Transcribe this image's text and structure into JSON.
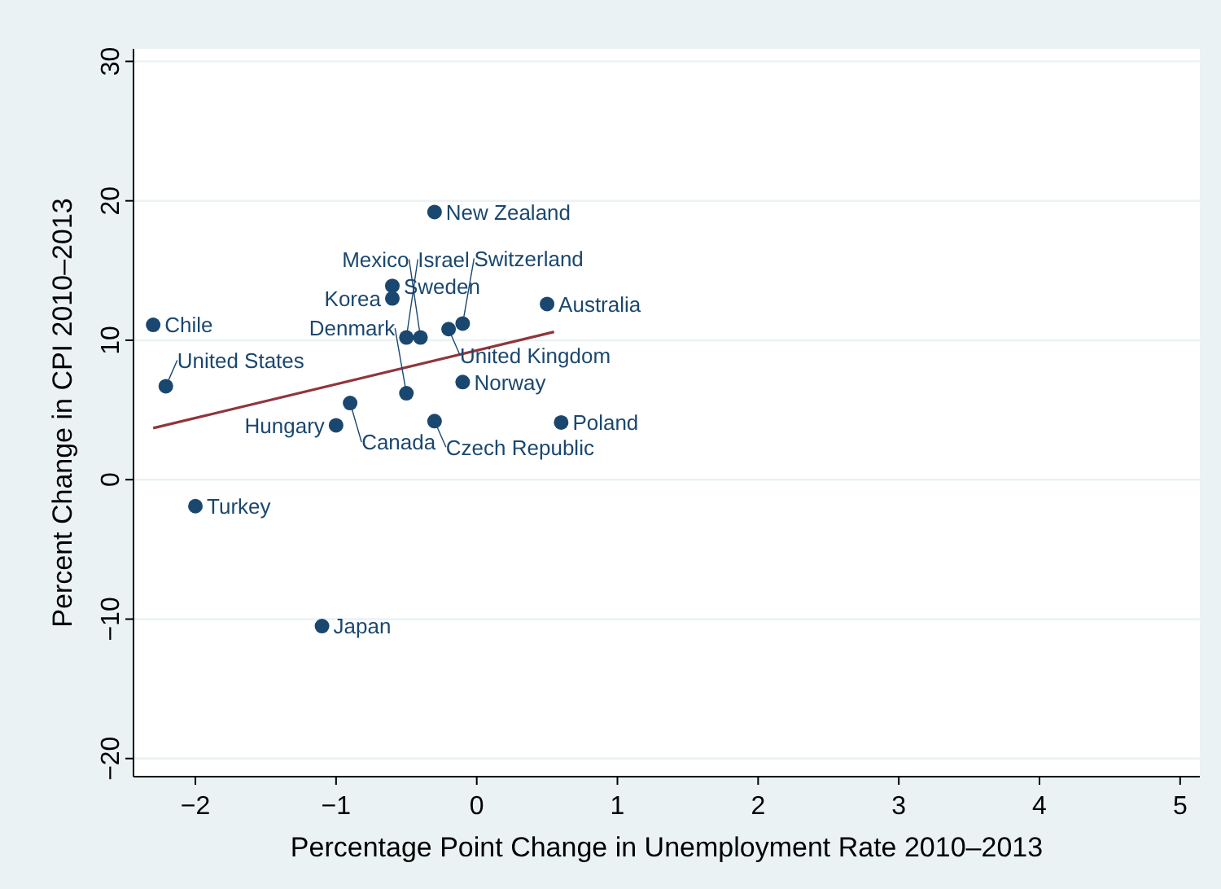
{
  "chart_data": {
    "type": "scatter",
    "xlabel": "Percentage Point Change in Unemployment Rate 2010–2013",
    "ylabel": "Percent Change in CPI 2010–2013",
    "xlim": [
      -2.44,
      5.14
    ],
    "ylim": [
      -21.3,
      30.9
    ],
    "xticks": [
      {
        "value": -2,
        "label": "−2"
      },
      {
        "value": -1,
        "label": "−1"
      },
      0,
      1,
      2,
      3,
      4,
      5
    ],
    "yticks": [
      {
        "value": -20,
        "label": "−20"
      },
      {
        "value": -10,
        "label": "−10"
      },
      0,
      10,
      20,
      30
    ],
    "grid": "y",
    "marker": "circle",
    "series": [
      {
        "color": "#1a476f",
        "x": [
          -2.3,
          -2.21,
          -2.0,
          -1.1,
          -1.0,
          -0.9,
          -0.5,
          -0.3,
          -0.1,
          0.6,
          -0.3,
          -0.6,
          -0.6,
          0.5,
          -0.5,
          -0.4,
          -0.2,
          -0.1
        ],
        "values": [
          11.1,
          6.7,
          -1.9,
          -10.5,
          3.9,
          5.5,
          6.2,
          4.2,
          7.0,
          4.1,
          19.2,
          13.9,
          13.0,
          12.6,
          10.2,
          10.2,
          10.8,
          11.2
        ]
      },
      {
        "type": "line",
        "color": "#90353b",
        "x": [
          -2.3,
          0.55
        ],
        "values": [
          3.7,
          10.6
        ],
        "marker": "none",
        "line_style": "solid"
      }
    ],
    "annotations": [
      {
        "text": "Chile",
        "x": -2.3,
        "y": 11.1
      },
      {
        "text": "United States",
        "x": -2.21,
        "y": 6.7
      },
      {
        "text": "Turkey",
        "x": -2.0,
        "y": -1.9
      },
      {
        "text": "Japan",
        "x": -1.1,
        "y": -10.5
      },
      {
        "text": "Hungary",
        "x": -1.0,
        "y": 3.9
      },
      {
        "text": "Canada",
        "x": -0.9,
        "y": 5.5
      },
      {
        "text": "Denmark",
        "x": -0.5,
        "y": 6.2
      },
      {
        "text": "Czech Republic",
        "x": -0.3,
        "y": 4.2
      },
      {
        "text": "Norway",
        "x": -0.1,
        "y": 7.0
      },
      {
        "text": "Poland",
        "x": 0.6,
        "y": 4.1
      },
      {
        "text": "New Zealand",
        "x": -0.3,
        "y": 19.2
      },
      {
        "text": "Sweden",
        "x": -0.6,
        "y": 13.9
      },
      {
        "text": "Korea",
        "x": -0.6,
        "y": 13.0
      },
      {
        "text": "Australia",
        "x": 0.5,
        "y": 12.6
      },
      {
        "text": "Israel",
        "x": -0.5,
        "y": 10.2
      },
      {
        "text": "Mexico",
        "x": -0.4,
        "y": 10.2
      },
      {
        "text": "United Kingdom",
        "x": -0.2,
        "y": 10.8
      },
      {
        "text": "Switzerland",
        "x": -0.1,
        "y": 11.2
      }
    ]
  }
}
